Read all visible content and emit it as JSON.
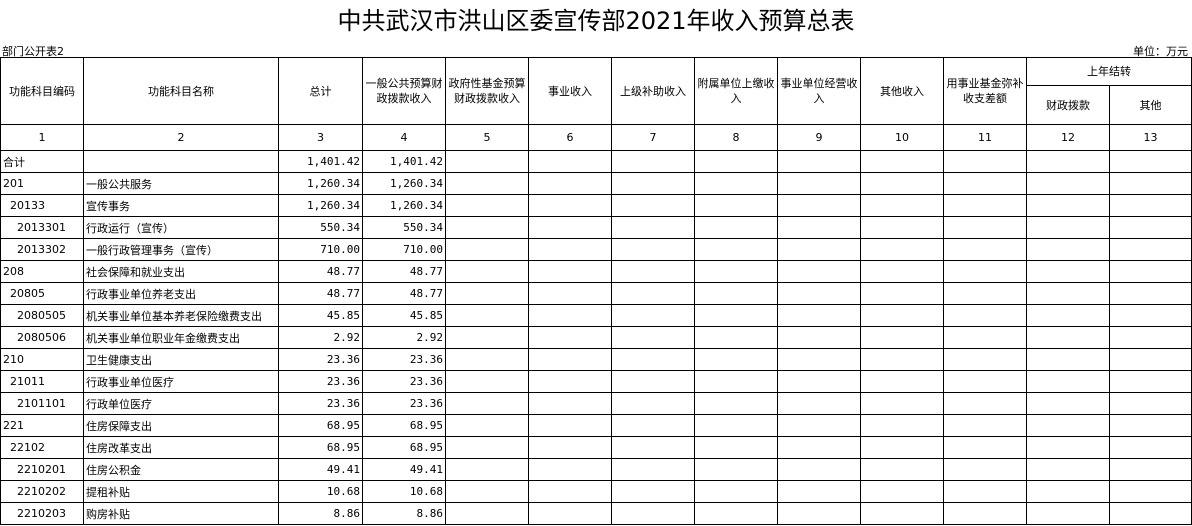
{
  "title": "中共武汉市洪山区委宣传部2021年收入预算总表",
  "subtitle": "部门公开表2",
  "unit": "单位：万元",
  "headers": [
    "功能科目编码",
    "功能科目名称",
    "总计",
    "一般公共预算财政拨款收入",
    "政府性基金预算财政拨款收入",
    "事业收入",
    "上级补助收入",
    "附属单位上缴收入",
    "事业单位经营收入",
    "其他收入",
    "用事业基金弥补收支差额"
  ],
  "group_header": "上年结转",
  "group_sub": [
    "财政拨款",
    "其他"
  ],
  "col_numbers": [
    "1",
    "2",
    "3",
    "4",
    "5",
    "6",
    "7",
    "8",
    "9",
    "10",
    "11",
    "12",
    "13"
  ],
  "rows": [
    {
      "code": "合计",
      "name": "",
      "total": "1,401.42",
      "general": "1,401.42",
      "indent": 0
    },
    {
      "code": "201",
      "name": "一般公共服务",
      "total": "1,260.34",
      "general": "1,260.34",
      "indent": 0
    },
    {
      "code": "20133",
      "name": "宣传事务",
      "total": "1,260.34",
      "general": "1,260.34",
      "indent": 1
    },
    {
      "code": "2013301",
      "name": "行政运行（宣传）",
      "total": "550.34",
      "general": "550.34",
      "indent": 2
    },
    {
      "code": "2013302",
      "name": "一般行政管理事务（宣传）",
      "total": "710.00",
      "general": "710.00",
      "indent": 2
    },
    {
      "code": "208",
      "name": "社会保障和就业支出",
      "total": "48.77",
      "general": "48.77",
      "indent": 0
    },
    {
      "code": "20805",
      "name": "行政事业单位养老支出",
      "total": "48.77",
      "general": "48.77",
      "indent": 1
    },
    {
      "code": "2080505",
      "name": "机关事业单位基本养老保险缴费支出",
      "total": "45.85",
      "general": "45.85",
      "indent": 2
    },
    {
      "code": "2080506",
      "name": "机关事业单位职业年金缴费支出",
      "total": "2.92",
      "general": "2.92",
      "indent": 2
    },
    {
      "code": "210",
      "name": "卫生健康支出",
      "total": "23.36",
      "general": "23.36",
      "indent": 0
    },
    {
      "code": "21011",
      "name": "行政事业单位医疗",
      "total": "23.36",
      "general": "23.36",
      "indent": 1
    },
    {
      "code": "2101101",
      "name": "行政单位医疗",
      "total": "23.36",
      "general": "23.36",
      "indent": 2
    },
    {
      "code": "221",
      "name": "住房保障支出",
      "total": "68.95",
      "general": "68.95",
      "indent": 0
    },
    {
      "code": "22102",
      "name": "住房改革支出",
      "total": "68.95",
      "general": "68.95",
      "indent": 1
    },
    {
      "code": "2210201",
      "name": "住房公积金",
      "total": "49.41",
      "general": "49.41",
      "indent": 2
    },
    {
      "code": "2210202",
      "name": "提租补贴",
      "total": "10.68",
      "general": "10.68",
      "indent": 2
    },
    {
      "code": "2210203",
      "name": "购房补贴",
      "total": "8.86",
      "general": "8.86",
      "indent": 2
    }
  ]
}
